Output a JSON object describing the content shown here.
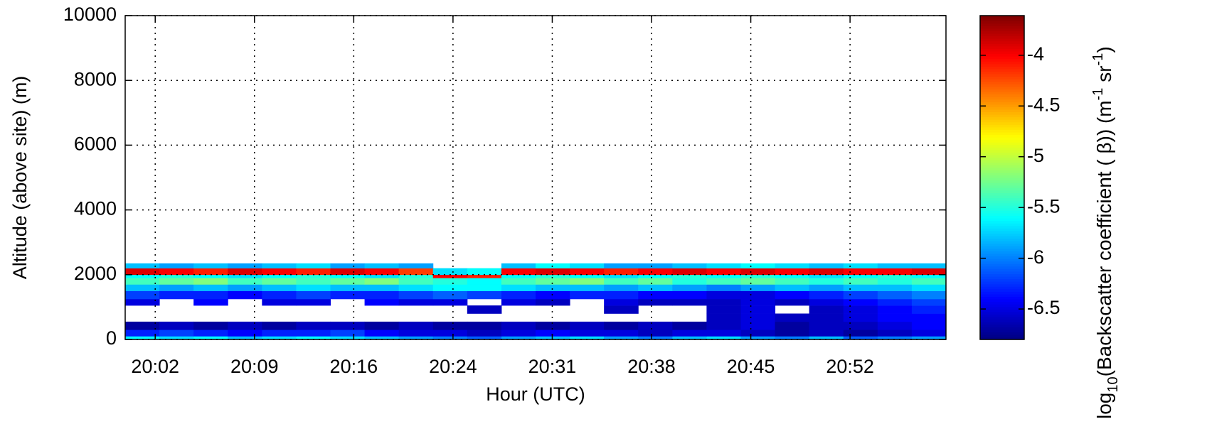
{
  "chart_data": {
    "type": "heatmap",
    "xlabel": "Hour (UTC)",
    "ylabel": "Altitude (above site) (m)",
    "colorbar_label": [
      "log",
      "10",
      "(Backscatter coefficient ( β)) (m",
      "-1",
      " sr",
      "-1",
      ")"
    ],
    "xlim": [
      20.0,
      20.984
    ],
    "xticks": [
      {
        "value": 20.036,
        "label": "20:02"
      },
      {
        "value": 20.155,
        "label": "20:09"
      },
      {
        "value": 20.274,
        "label": "20:16"
      },
      {
        "value": 20.393,
        "label": "20:24"
      },
      {
        "value": 20.512,
        "label": "20:31"
      },
      {
        "value": 20.631,
        "label": "20:38"
      },
      {
        "value": 20.75,
        "label": "20:45"
      },
      {
        "value": 20.869,
        "label": "20:52"
      }
    ],
    "ylim": [
      0,
      10000
    ],
    "yticks": [
      0,
      2000,
      4000,
      6000,
      8000,
      10000
    ],
    "zlim": [
      -6.8,
      -3.61
    ],
    "zticks": [
      -4,
      -4.5,
      -5,
      -5.5,
      -6,
      -6.5
    ],
    "colormap": "jet",
    "grid": true,
    "xbins": [
      20.0,
      20.041,
      20.082,
      20.123,
      20.164,
      20.205,
      20.246,
      20.287,
      20.328,
      20.369,
      20.41,
      20.451,
      20.492,
      20.533,
      20.574,
      20.615,
      20.656,
      20.697,
      20.738,
      20.779,
      20.82,
      20.861,
      20.902,
      20.943,
      20.984
    ],
    "ybins": [
      0,
      100,
      300,
      550,
      800,
      1050,
      1250,
      1500,
      1700,
      1900,
      2000,
      2200,
      2350
    ],
    "z": [
      [
        -5.6,
        -5.7,
        -5.6,
        -5.8,
        -5.7,
        -5.6,
        -5.7,
        -5.8,
        -5.9,
        -6.0,
        -6.1,
        -5.9,
        -5.8,
        -5.7,
        -5.9,
        -6.0,
        -5.8,
        -5.7,
        -5.9,
        -6.0,
        -5.8,
        -6.1,
        -6.0,
        -5.9
      ],
      [
        -6.3,
        -6.2,
        -6.3,
        -6.4,
        -6.3,
        -6.3,
        -6.2,
        -6.4,
        -6.5,
        -6.5,
        -6.6,
        -6.5,
        -6.4,
        -6.5,
        -6.5,
        -6.6,
        -6.5,
        -6.5,
        -6.6,
        -6.7,
        -6.6,
        -6.7,
        -6.6,
        -6.5
      ],
      [
        -6.7,
        -6.6,
        -6.7,
        -6.6,
        -6.7,
        -6.6,
        -6.6,
        -6.7,
        -6.6,
        -6.7,
        -6.7,
        -6.6,
        -6.7,
        -6.6,
        -6.7,
        -6.6,
        -6.7,
        -6.6,
        -6.5,
        -6.7,
        -6.6,
        -6.6,
        -6.5,
        -6.4
      ],
      [
        null,
        null,
        null,
        null,
        null,
        null,
        null,
        null,
        null,
        null,
        null,
        null,
        null,
        null,
        null,
        null,
        null,
        -6.6,
        -6.5,
        -6.6,
        -6.6,
        -6.5,
        -6.4,
        -6.4
      ],
      [
        null,
        null,
        null,
        null,
        null,
        null,
        null,
        null,
        null,
        null,
        -6.6,
        null,
        null,
        null,
        -6.6,
        null,
        null,
        -6.6,
        -6.5,
        null,
        -6.6,
        -6.5,
        -6.4,
        -6.3
      ],
      [
        -6.5,
        null,
        -6.4,
        null,
        -6.5,
        -6.5,
        null,
        -6.4,
        -6.5,
        -6.5,
        null,
        -6.5,
        -6.6,
        null,
        -6.5,
        -6.6,
        -6.6,
        -6.6,
        -6.5,
        -6.6,
        -6.5,
        -6.4,
        -6.3,
        -6.2
      ],
      [
        -6.2,
        -6.3,
        -6.3,
        -6.4,
        -6.3,
        -6.2,
        -6.3,
        -6.3,
        -6.2,
        -6.1,
        -6.2,
        -6.3,
        -6.4,
        -6.3,
        -6.3,
        -6.4,
        -6.4,
        -6.5,
        -6.5,
        -6.4,
        -6.3,
        -6.2,
        -6.1,
        -6.0
      ],
      [
        -5.8,
        -5.9,
        -5.8,
        -5.9,
        -5.8,
        -5.7,
        -5.8,
        -5.8,
        -5.7,
        -5.6,
        -5.6,
        -5.7,
        -5.8,
        -5.8,
        -5.9,
        -5.8,
        -5.9,
        -6.0,
        -5.9,
        -5.8,
        -5.9,
        -5.8,
        -5.8,
        -5.7
      ],
      [
        -5.4,
        -5.3,
        -5.2,
        -5.4,
        -5.3,
        -5.4,
        -5.3,
        -5.2,
        -5.4,
        -5.5,
        -5.6,
        -5.4,
        -5.3,
        -5.2,
        -5.4,
        -5.3,
        -5.5,
        -5.4,
        -5.3,
        -5.4,
        -5.5,
        -5.4,
        -5.5,
        -5.4
      ],
      [
        -5.6,
        -5.5,
        -5.6,
        -5.7,
        -5.6,
        -5.5,
        -5.6,
        -5.7,
        -5.5,
        -4.0,
        -4.1,
        -5.6,
        -5.5,
        -5.6,
        -5.7,
        -5.6,
        -5.5,
        -5.6,
        -5.5,
        -5.6,
        -5.7,
        -5.6,
        -5.5,
        -5.6
      ],
      [
        -3.9,
        -4.0,
        -4.1,
        -3.9,
        -4.0,
        -4.1,
        -3.9,
        -4.0,
        -4.2,
        -5.7,
        -5.6,
        -4.0,
        -3.9,
        -4.0,
        -4.1,
        -4.0,
        -3.9,
        -4.0,
        -3.9,
        -4.0,
        -3.9,
        -4.0,
        -4.0,
        -3.9
      ],
      [
        -5.8,
        -5.9,
        -5.8,
        -5.9,
        -5.8,
        -5.7,
        -5.9,
        -5.8,
        -5.9,
        null,
        null,
        -5.8,
        -5.6,
        -5.7,
        -5.9,
        -5.9,
        -5.8,
        -5.7,
        -5.6,
        -5.7,
        -5.8,
        -5.7,
        -5.8,
        -5.8
      ]
    ]
  }
}
